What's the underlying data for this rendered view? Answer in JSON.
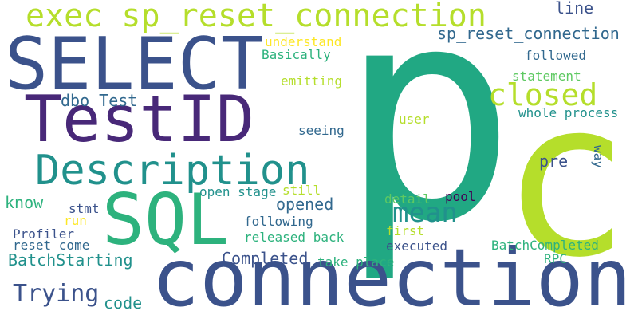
{
  "palette": {
    "background": "#ffffff",
    "dark_purple": "#440154",
    "indigo": "#3b528b",
    "slate_blue": "#31688e",
    "teal": "#21918c",
    "sea_green": "#2db27d",
    "green": "#5ec962",
    "lime": "#b5de2b",
    "yellow": "#fde725"
  },
  "words": [
    {
      "text": "p",
      "color": "#21a883"
    },
    {
      "text": "c",
      "color": "#b5de2b"
    },
    {
      "text": "connection",
      "color": "#3b528b"
    },
    {
      "text": "SELECT",
      "color": "#3b528b"
    },
    {
      "text": "TestID",
      "color": "#482878"
    },
    {
      "text": "exec sp_reset_connection",
      "color": "#b5de2b"
    },
    {
      "text": "Description",
      "color": "#21918c"
    },
    {
      "text": "SQL",
      "color": "#2db27d"
    },
    {
      "text": "closed",
      "color": "#b5de2b"
    },
    {
      "text": "mean",
      "color": "#21918c"
    },
    {
      "text": "Trying",
      "color": "#3b528b"
    },
    {
      "text": "dbo Test",
      "color": "#31688e"
    },
    {
      "text": "sp_reset_connection",
      "color": "#31688e"
    },
    {
      "text": "line",
      "color": "#3b528b"
    },
    {
      "text": "understand",
      "color": "#fde725"
    },
    {
      "text": "Basically",
      "color": "#2db27d"
    },
    {
      "text": "followed",
      "color": "#31688e"
    },
    {
      "text": "emitting",
      "color": "#b5de2b"
    },
    {
      "text": "statement",
      "color": "#5ec962"
    },
    {
      "text": "whole process",
      "color": "#21918c"
    },
    {
      "text": "user",
      "color": "#b5de2b"
    },
    {
      "text": "seeing",
      "color": "#31688e"
    },
    {
      "text": "pre",
      "color": "#3b528b"
    },
    {
      "text": "way",
      "color": "#31688e"
    },
    {
      "text": "know",
      "color": "#2db27d"
    },
    {
      "text": "open stage",
      "color": "#21918c"
    },
    {
      "text": "still",
      "color": "#b5de2b"
    },
    {
      "text": "opened",
      "color": "#31688e"
    },
    {
      "text": "stmt",
      "color": "#3b528b"
    },
    {
      "text": "run",
      "color": "#fde725"
    },
    {
      "text": "Profiler",
      "color": "#3b528b"
    },
    {
      "text": "reset come",
      "color": "#31688e"
    },
    {
      "text": "following",
      "color": "#31688e"
    },
    {
      "text": "detail",
      "color": "#5ec962"
    },
    {
      "text": "pool",
      "color": "#440154"
    },
    {
      "text": "first",
      "color": "#b5de2b"
    },
    {
      "text": "released back",
      "color": "#2db27d"
    },
    {
      "text": "BatchStarting",
      "color": "#21918c"
    },
    {
      "text": "Completed",
      "color": "#3b528b"
    },
    {
      "text": "executed",
      "color": "#3b528b"
    },
    {
      "text": "BatchCompleted",
      "color": "#2db27d"
    },
    {
      "text": "take place",
      "color": "#2db27d"
    },
    {
      "text": "RPC",
      "color": "#2db27d"
    },
    {
      "text": "code",
      "color": "#21918c"
    }
  ]
}
